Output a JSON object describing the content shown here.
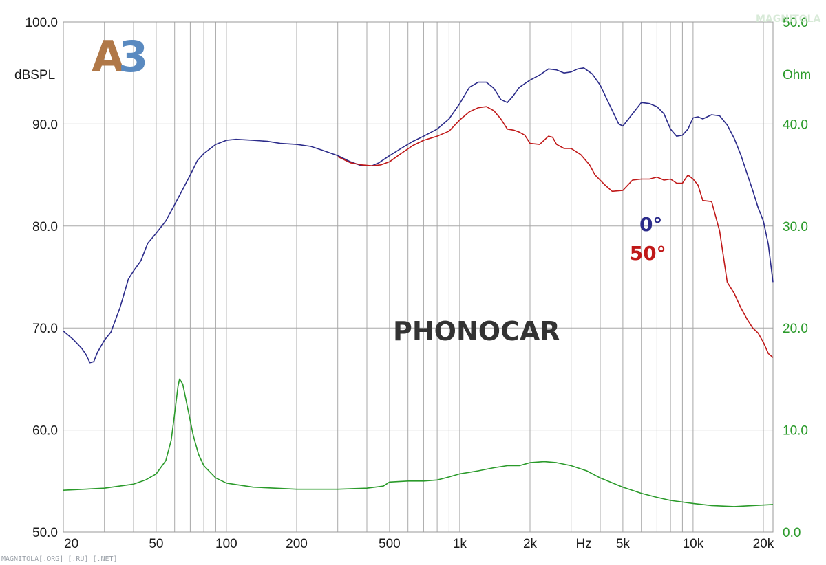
{
  "chart_data": {
    "type": "line",
    "brand_label": "PHONOCAR",
    "logo_text": {
      "a": "A",
      "b": "3"
    },
    "footer_text": "MAGNITOLA[.ORG] [.RU] [.NET]",
    "watermark_text": "MAGNITOLA",
    "y_left": {
      "unit": "dBSPL",
      "min": 50,
      "max": 100,
      "ticks": [
        "50.0",
        "60.0",
        "70.0",
        "80.0",
        "90.0",
        "100.0"
      ],
      "tick_values": [
        50,
        60,
        70,
        80,
        90,
        100
      ]
    },
    "y_right": {
      "unit": "Ohm",
      "min": 0,
      "max": 50,
      "ticks": [
        "0.0",
        "10.0",
        "20.0",
        "30.0",
        "40.0",
        "50.0"
      ],
      "tick_values": [
        0,
        10,
        20,
        30,
        40,
        50
      ]
    },
    "x_axis": {
      "scale": "log",
      "min": 20,
      "max": 22000,
      "unit_label": "Hz",
      "unit_position": 3400,
      "tick_labels": [
        {
          "label": "20",
          "value": 20
        },
        {
          "label": "50",
          "value": 50
        },
        {
          "label": "100",
          "value": 100
        },
        {
          "label": "200",
          "value": 200
        },
        {
          "label": "500",
          "value": 500
        },
        {
          "label": "1k",
          "value": 1000
        },
        {
          "label": "2k",
          "value": 2000
        },
        {
          "label": "5k",
          "value": 5000
        },
        {
          "label": "10k",
          "value": 10000
        },
        {
          "label": "20k",
          "value": 20000
        }
      ],
      "gridlines": [
        20,
        30,
        40,
        50,
        60,
        70,
        80,
        90,
        100,
        200,
        300,
        400,
        500,
        600,
        700,
        800,
        900,
        1000,
        2000,
        3000,
        4000,
        5000,
        6000,
        7000,
        8000,
        9000,
        10000,
        20000
      ]
    },
    "grid": true,
    "colors": {
      "deg0": "#2b2b8a",
      "deg50": "#c01818",
      "impedance": "#2a9a2a",
      "grid": "#a8a8a8",
      "brand": "#333333",
      "logo_a": "#b07848",
      "logo_3": "#5a8ac0"
    },
    "series": [
      {
        "name": "0°",
        "axis": "left",
        "color": "#2b2b8a",
        "points": [
          [
            20,
            69.7
          ],
          [
            22,
            68.9
          ],
          [
            24,
            68
          ],
          [
            25,
            67.4
          ],
          [
            26,
            66.6
          ],
          [
            27,
            66.7
          ],
          [
            28,
            67.6
          ],
          [
            30,
            68.8
          ],
          [
            32,
            69.6
          ],
          [
            35,
            72
          ],
          [
            38,
            74.8
          ],
          [
            40,
            75.6
          ],
          [
            43,
            76.6
          ],
          [
            46,
            78.3
          ],
          [
            50,
            79.3
          ],
          [
            55,
            80.5
          ],
          [
            60,
            82.1
          ],
          [
            65,
            83.6
          ],
          [
            70,
            85
          ],
          [
            75,
            86.4
          ],
          [
            80,
            87.1
          ],
          [
            90,
            88
          ],
          [
            100,
            88.4
          ],
          [
            110,
            88.5
          ],
          [
            130,
            88.4
          ],
          [
            150,
            88.3
          ],
          [
            170,
            88.1
          ],
          [
            200,
            88
          ],
          [
            230,
            87.8
          ],
          [
            260,
            87.4
          ],
          [
            300,
            86.9
          ],
          [
            340,
            86.3
          ],
          [
            380,
            85.9
          ],
          [
            420,
            85.9
          ],
          [
            450,
            86.2
          ],
          [
            500,
            86.9
          ],
          [
            560,
            87.6
          ],
          [
            630,
            88.3
          ],
          [
            700,
            88.8
          ],
          [
            800,
            89.5
          ],
          [
            900,
            90.5
          ],
          [
            1000,
            92
          ],
          [
            1100,
            93.6
          ],
          [
            1200,
            94.1
          ],
          [
            1300,
            94.1
          ],
          [
            1400,
            93.5
          ],
          [
            1500,
            92.4
          ],
          [
            1600,
            92.1
          ],
          [
            1700,
            92.8
          ],
          [
            1800,
            93.6
          ],
          [
            2000,
            94.3
          ],
          [
            2200,
            94.8
          ],
          [
            2400,
            95.4
          ],
          [
            2600,
            95.3
          ],
          [
            2800,
            95
          ],
          [
            3000,
            95.1
          ],
          [
            3200,
            95.4
          ],
          [
            3400,
            95.5
          ],
          [
            3700,
            94.9
          ],
          [
            4000,
            93.8
          ],
          [
            4400,
            91.8
          ],
          [
            4800,
            90
          ],
          [
            5000,
            89.8
          ],
          [
            5500,
            91
          ],
          [
            6000,
            92.1
          ],
          [
            6500,
            92
          ],
          [
            7000,
            91.7
          ],
          [
            7500,
            91
          ],
          [
            8000,
            89.5
          ],
          [
            8500,
            88.8
          ],
          [
            9000,
            88.9
          ],
          [
            9500,
            89.5
          ],
          [
            10000,
            90.6
          ],
          [
            10500,
            90.7
          ],
          [
            11000,
            90.5
          ],
          [
            12000,
            90.9
          ],
          [
            13000,
            90.8
          ],
          [
            14000,
            89.9
          ],
          [
            15000,
            88.6
          ],
          [
            16000,
            87
          ],
          [
            17000,
            85.2
          ],
          [
            18000,
            83.5
          ],
          [
            19000,
            81.8
          ],
          [
            20000,
            80.5
          ],
          [
            21000,
            78.2
          ],
          [
            22000,
            74.5
          ]
        ]
      },
      {
        "name": "50°",
        "axis": "left",
        "color": "#c01818",
        "points": [
          [
            300,
            86.8
          ],
          [
            340,
            86.2
          ],
          [
            380,
            86
          ],
          [
            420,
            85.9
          ],
          [
            460,
            86
          ],
          [
            500,
            86.3
          ],
          [
            560,
            87.1
          ],
          [
            630,
            87.9
          ],
          [
            700,
            88.4
          ],
          [
            800,
            88.8
          ],
          [
            900,
            89.3
          ],
          [
            1000,
            90.4
          ],
          [
            1100,
            91.2
          ],
          [
            1200,
            91.6
          ],
          [
            1300,
            91.7
          ],
          [
            1400,
            91.3
          ],
          [
            1500,
            90.5
          ],
          [
            1600,
            89.5
          ],
          [
            1700,
            89.4
          ],
          [
            1800,
            89.2
          ],
          [
            1900,
            88.9
          ],
          [
            2000,
            88.1
          ],
          [
            2200,
            88
          ],
          [
            2400,
            88.8
          ],
          [
            2500,
            88.7
          ],
          [
            2600,
            88
          ],
          [
            2800,
            87.6
          ],
          [
            3000,
            87.6
          ],
          [
            3300,
            87
          ],
          [
            3600,
            86
          ],
          [
            3800,
            85
          ],
          [
            4200,
            84
          ],
          [
            4500,
            83.4
          ],
          [
            5000,
            83.5
          ],
          [
            5500,
            84.5
          ],
          [
            6000,
            84.6
          ],
          [
            6500,
            84.6
          ],
          [
            7000,
            84.8
          ],
          [
            7500,
            84.5
          ],
          [
            8000,
            84.6
          ],
          [
            8500,
            84.2
          ],
          [
            9000,
            84.2
          ],
          [
            9500,
            85
          ],
          [
            10000,
            84.6
          ],
          [
            10500,
            84
          ],
          [
            11000,
            82.5
          ],
          [
            12000,
            82.4
          ],
          [
            13000,
            79.5
          ],
          [
            14000,
            74.5
          ],
          [
            15000,
            73.4
          ],
          [
            16000,
            72
          ],
          [
            17000,
            70.9
          ],
          [
            18000,
            70
          ],
          [
            19000,
            69.5
          ],
          [
            20000,
            68.6
          ],
          [
            21000,
            67.5
          ],
          [
            22000,
            67.1
          ]
        ]
      },
      {
        "name": "",
        "axis": "right",
        "color": "#2a9a2a",
        "points": [
          [
            20,
            4.1
          ],
          [
            30,
            4.3
          ],
          [
            40,
            4.7
          ],
          [
            45,
            5.1
          ],
          [
            50,
            5.7
          ],
          [
            55,
            7
          ],
          [
            58,
            9
          ],
          [
            60,
            11.6
          ],
          [
            62,
            14.3
          ],
          [
            63,
            15
          ],
          [
            65,
            14.5
          ],
          [
            68,
            12.3
          ],
          [
            72,
            9.5
          ],
          [
            76,
            7.6
          ],
          [
            80,
            6.5
          ],
          [
            90,
            5.3
          ],
          [
            100,
            4.8
          ],
          [
            130,
            4.4
          ],
          [
            200,
            4.2
          ],
          [
            300,
            4.2
          ],
          [
            400,
            4.3
          ],
          [
            470,
            4.5
          ],
          [
            500,
            4.9
          ],
          [
            600,
            5
          ],
          [
            700,
            5
          ],
          [
            800,
            5.1
          ],
          [
            900,
            5.4
          ],
          [
            1000,
            5.7
          ],
          [
            1200,
            6
          ],
          [
            1400,
            6.3
          ],
          [
            1600,
            6.5
          ],
          [
            1800,
            6.5
          ],
          [
            2000,
            6.8
          ],
          [
            2300,
            6.9
          ],
          [
            2600,
            6.8
          ],
          [
            3000,
            6.5
          ],
          [
            3500,
            6
          ],
          [
            4000,
            5.3
          ],
          [
            5000,
            4.4
          ],
          [
            6000,
            3.8
          ],
          [
            7000,
            3.4
          ],
          [
            8000,
            3.1
          ],
          [
            10000,
            2.8
          ],
          [
            12000,
            2.6
          ],
          [
            15000,
            2.5
          ],
          [
            18000,
            2.6
          ],
          [
            22000,
            2.7
          ]
        ]
      }
    ],
    "annotations": [
      {
        "text": "0°",
        "color": "#2b2b8a",
        "x": 6600,
        "y": 79.5
      },
      {
        "text": "50°",
        "color": "#c01818",
        "x": 6400,
        "y": 76.7
      }
    ]
  }
}
